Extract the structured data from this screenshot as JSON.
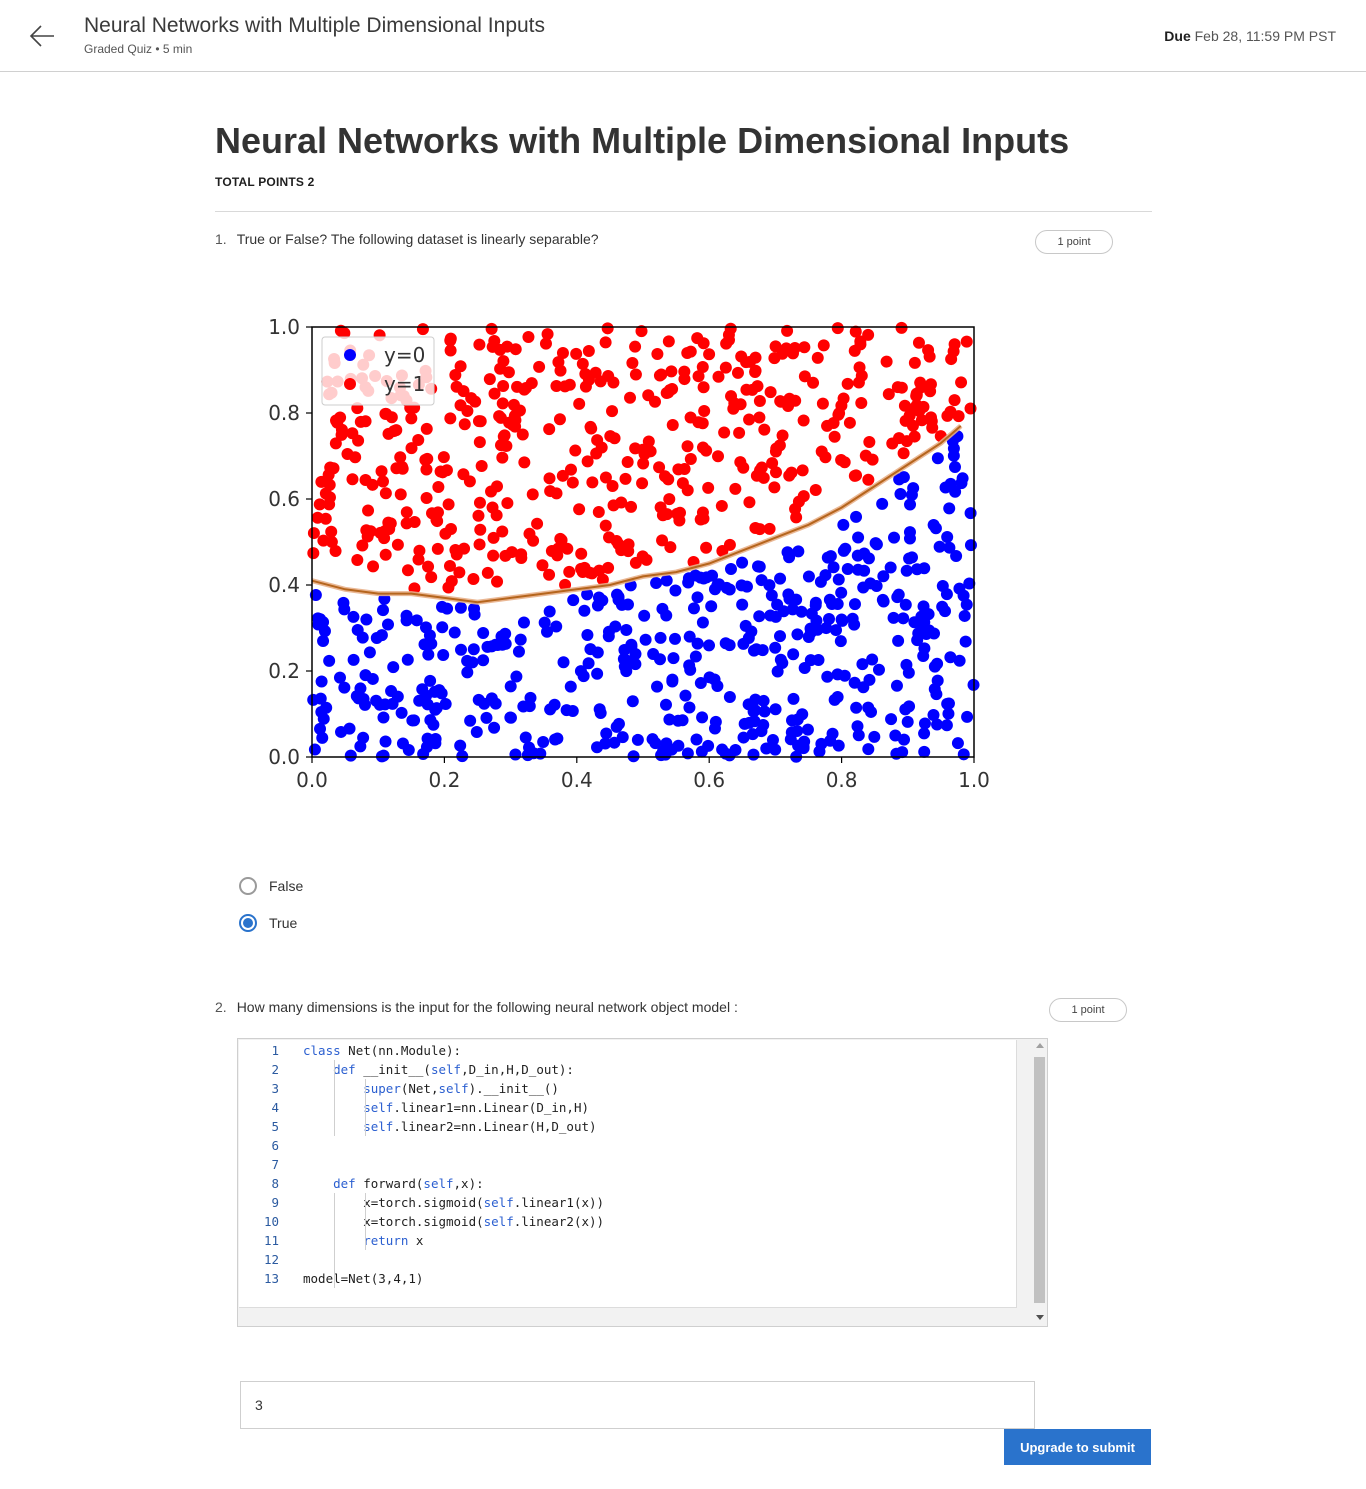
{
  "header": {
    "title": "Neural Networks with Multiple Dimensional Inputs",
    "subtitle": "Graded Quiz • 5 min",
    "due_label": "Due",
    "due_value": "Feb 28, 11:59 PM PST"
  },
  "page": {
    "title": "Neural Networks with Multiple Dimensional Inputs",
    "total_points": "TOTAL POINTS 2"
  },
  "questions": [
    {
      "number": "1.",
      "text": "True or False? The following dataset is linearly separable?",
      "points": "1 point",
      "options": [
        {
          "label": "False",
          "selected": false
        },
        {
          "label": "True",
          "selected": true
        }
      ]
    },
    {
      "number": "2.",
      "text": "How many dimensions is the input for the following neural network object model :",
      "points": "1 point",
      "code_lines": [
        {
          "n": "1",
          "text": "class Net(nn.Module):"
        },
        {
          "n": "2",
          "text": "    def __init__(self,D_in,H,D_out):"
        },
        {
          "n": "3",
          "text": "        super(Net,self).__init__()"
        },
        {
          "n": "4",
          "text": "        self.linear1=nn.Linear(D_in,H)"
        },
        {
          "n": "5",
          "text": "        self.linear2=nn.Linear(H,D_out)"
        },
        {
          "n": "6",
          "text": ""
        },
        {
          "n": "7",
          "text": ""
        },
        {
          "n": "8",
          "text": "    def forward(self,x):"
        },
        {
          "n": "9",
          "text": "        x=torch.sigmoid(self.linear1(x))"
        },
        {
          "n": "10",
          "text": "        x=torch.sigmoid(self.linear2(x))"
        },
        {
          "n": "11",
          "text": "        return x"
        },
        {
          "n": "12",
          "text": ""
        },
        {
          "n": "13",
          "text": "model=Net(3,4,1)"
        }
      ],
      "answer_value": "3"
    }
  ],
  "submit_label": "Upgrade to submit",
  "colors": {
    "accent": "#2a73cc",
    "class0": "#0000ff",
    "class1": "#ff0000",
    "boundary": "#b5651d"
  },
  "icons": {
    "back": "arrow-left-icon"
  },
  "chart_data": {
    "type": "scatter",
    "title": "",
    "xlabel": "",
    "ylabel": "",
    "xlim": [
      0,
      1
    ],
    "ylim": [
      0,
      1
    ],
    "x_ticks": [
      "0.0",
      "0.2",
      "0.4",
      "0.6",
      "0.8",
      "1.0"
    ],
    "y_ticks": [
      "0.0",
      "0.2",
      "0.4",
      "0.6",
      "0.8",
      "1.0"
    ],
    "legend": {
      "placement": "top-left",
      "entries": [
        "y=0",
        "y=1"
      ]
    },
    "boundary_line": {
      "x": [
        0.0,
        0.05,
        0.1,
        0.15,
        0.2,
        0.25,
        0.3,
        0.35,
        0.4,
        0.45,
        0.5,
        0.55,
        0.6,
        0.65,
        0.7,
        0.75,
        0.8,
        0.85,
        0.9,
        0.95,
        0.98
      ],
      "y": [
        0.41,
        0.39,
        0.38,
        0.38,
        0.37,
        0.36,
        0.37,
        0.38,
        0.39,
        0.4,
        0.42,
        0.43,
        0.45,
        0.48,
        0.51,
        0.54,
        0.58,
        0.63,
        0.68,
        0.73,
        0.77
      ]
    },
    "series": [
      {
        "name": "y=0",
        "color": "#0000ff",
        "count": 500
      },
      {
        "name": "y=1",
        "color": "#ff0000",
        "count": 500
      }
    ]
  }
}
